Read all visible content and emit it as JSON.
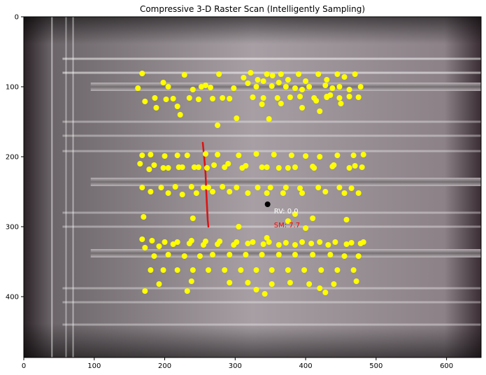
{
  "chart_data": {
    "type": "scatter",
    "title": "Compressive 3-D Raster Scan (Intelligently Sampling)",
    "xlabel": "",
    "ylabel": "",
    "xlim": [
      0,
      649
    ],
    "ylim": [
      487,
      0
    ],
    "x_ticks": [
      0,
      100,
      200,
      300,
      400,
      500,
      600
    ],
    "y_ticks": [
      0,
      100,
      200,
      300,
      400
    ],
    "grid": false,
    "background": "microscope image of a circuit board with horizontal copper traces",
    "colors": {
      "sample_points": "#ffff00",
      "current_position": "#000000",
      "path": "#dd1111",
      "rv_text": "#ffffff",
      "sm_text": "#ff0000"
    },
    "annotations": [
      {
        "text": "RV: 0.0",
        "x": 355,
        "y": 277,
        "color": "#ffffff"
      },
      {
        "text": "SM: 7.7",
        "x": 355,
        "y": 297,
        "color": "#ff0000"
      }
    ],
    "current_position": {
      "x": 346,
      "y": 268
    },
    "path": {
      "x": [
        254,
        256,
        258,
        259,
        260,
        261,
        262
      ],
      "y": [
        180,
        200,
        225,
        250,
        270,
        290,
        300
      ]
    },
    "samples": {
      "x": [
        168,
        198,
        228,
        252,
        277,
        312,
        322,
        332,
        345,
        353,
        365,
        375,
        390,
        400,
        418,
        430,
        445,
        455,
        470,
        162,
        205,
        240,
        258,
        265,
        298,
        318,
        330,
        340,
        352,
        362,
        372,
        385,
        395,
        405,
        428,
        438,
        448,
        462,
        478,
        172,
        186,
        212,
        235,
        248,
        268,
        282,
        292,
        325,
        340,
        360,
        378,
        392,
        412,
        430,
        448,
        462,
        475,
        188,
        202,
        222,
        338,
        395,
        415,
        430,
        450,
        218,
        275,
        302,
        348,
        365,
        420,
        435,
        168,
        180,
        200,
        218,
        232,
        258,
        275,
        305,
        330,
        355,
        380,
        400,
        420,
        445,
        468,
        482,
        165,
        185,
        205,
        225,
        248,
        270,
        290,
        315,
        345,
        375,
        410,
        440,
        470,
        178,
        198,
        220,
        242,
        260,
        285,
        310,
        338,
        362,
        385,
        412,
        438,
        462,
        480,
        168,
        195,
        215,
        238,
        255,
        262,
        282,
        302,
        332,
        350,
        372,
        392,
        418,
        448,
        465,
        180,
        205,
        225,
        245,
        268,
        292,
        318,
        345,
        368,
        395,
        428,
        455,
        475,
        170,
        240,
        385,
        410,
        458,
        305,
        345,
        375,
        400,
        168,
        182,
        200,
        218,
        238,
        258,
        278,
        302,
        325,
        348,
        372,
        395,
        420,
        442,
        465,
        482,
        172,
        192,
        212,
        235,
        255,
        275,
        298,
        318,
        340,
        362,
        385,
        408,
        432,
        458,
        478,
        185,
        205,
        228,
        250,
        268,
        292,
        315,
        338,
        362,
        385,
        410,
        435,
        455,
        475,
        180,
        198,
        218,
        240,
        262,
        285,
        308,
        330,
        352,
        375,
        398,
        422,
        445,
        468,
        192,
        238,
        292,
        318,
        352,
        378,
        405,
        440,
        472,
        172,
        232,
        330,
        342,
        420,
        428
      ],
      "y": [
        81,
        94,
        83,
        100,
        82,
        87,
        80,
        90,
        82,
        84,
        82,
        90,
        82,
        92,
        82,
        90,
        82,
        86,
        82,
        102,
        100,
        104,
        98,
        101,
        102,
        95,
        100,
        92,
        99,
        94,
        100,
        102,
        104,
        100,
        98,
        102,
        100,
        104,
        100,
        121,
        116,
        117,
        116,
        118,
        117,
        116,
        117,
        115,
        116,
        116,
        115,
        114,
        116,
        115,
        116,
        114,
        115,
        130,
        118,
        140,
        125,
        130,
        120,
        114,
        124,
        128,
        155,
        145,
        146,
        124,
        135,
        112,
        198,
        197,
        199,
        198,
        198,
        196,
        197,
        198,
        196,
        197,
        198,
        199,
        200,
        198,
        198,
        197,
        210,
        212,
        216,
        215,
        215,
        212,
        210,
        213,
        215,
        216,
        214,
        212,
        213,
        218,
        216,
        215,
        215,
        216,
        215,
        216,
        215,
        216,
        215,
        216,
        214,
        216,
        215,
        244,
        244,
        243,
        243,
        244,
        244,
        243,
        244,
        244,
        244,
        244,
        245,
        244,
        244,
        245,
        250,
        252,
        254,
        252,
        250,
        250,
        252,
        252,
        252,
        252,
        250,
        252,
        252,
        286,
        288,
        282,
        288,
        290,
        300,
        316,
        292,
        302,
        318,
        320,
        322,
        322,
        320,
        321,
        321,
        322,
        322,
        322,
        323,
        322,
        322,
        322,
        323,
        322,
        330,
        328,
        325,
        324,
        326,
        325,
        326,
        324,
        325,
        326,
        326,
        324,
        326,
        325,
        324,
        342,
        340,
        342,
        342,
        340,
        340,
        340,
        340,
        340,
        340,
        340,
        340,
        342,
        342,
        362,
        362,
        362,
        362,
        362,
        362,
        362,
        362,
        362,
        362,
        362,
        362,
        362,
        362,
        382,
        378,
        380,
        380,
        382,
        380,
        382,
        382,
        378,
        392,
        392,
        390,
        396,
        388,
        394
      ]
    }
  }
}
